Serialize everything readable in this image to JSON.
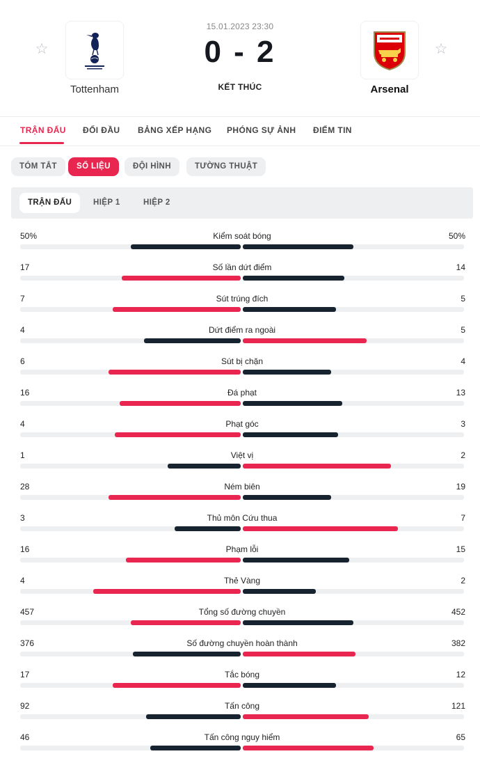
{
  "match": {
    "date": "15.01.2023 23:30",
    "score": "0 - 2",
    "status": "KẾT THÚC",
    "home": {
      "name": "Tottenham"
    },
    "away": {
      "name": "Arsenal"
    }
  },
  "main_tabs": [
    "TRẬN ĐẤU",
    "ĐỐI ĐẦU",
    "BẢNG XẾP HẠNG",
    "PHÓNG SỰ ẢNH",
    "ĐIỂM TIN"
  ],
  "sub_tabs": [
    "TÓM TẮT",
    "SỐ LIỆU",
    "ĐỘI HÌNH",
    "TƯỜNG THUẬT"
  ],
  "period_tabs": [
    "TRẬN ĐẤU",
    "HIỆP 1",
    "HIỆP 2"
  ],
  "colors": {
    "accent": "#e8264f",
    "dark": "#17232f",
    "track": "#eeeff1"
  },
  "stats": [
    {
      "label": "Kiểm soát bóng",
      "home": "50%",
      "away": "50%",
      "home_share": 0.5,
      "away_share": 0.5,
      "home_color": "dark",
      "away_color": "dark"
    },
    {
      "label": "Số lần dứt điểm",
      "home": "17",
      "away": "14",
      "home_share": 0.54,
      "away_share": 0.46,
      "home_color": "accent",
      "away_color": "dark"
    },
    {
      "label": "Sút trúng đích",
      "home": "7",
      "away": "5",
      "home_share": 0.58,
      "away_share": 0.42,
      "home_color": "accent",
      "away_color": "dark"
    },
    {
      "label": "Dứt điểm ra ngoài",
      "home": "4",
      "away": "5",
      "home_share": 0.44,
      "away_share": 0.56,
      "home_color": "dark",
      "away_color": "accent"
    },
    {
      "label": "Sút bị chặn",
      "home": "6",
      "away": "4",
      "home_share": 0.6,
      "away_share": 0.4,
      "home_color": "accent",
      "away_color": "dark"
    },
    {
      "label": "Đá phạt",
      "home": "16",
      "away": "13",
      "home_share": 0.55,
      "away_share": 0.45,
      "home_color": "accent",
      "away_color": "dark"
    },
    {
      "label": "Phạt góc",
      "home": "4",
      "away": "3",
      "home_share": 0.57,
      "away_share": 0.43,
      "home_color": "accent",
      "away_color": "dark"
    },
    {
      "label": "Việt vị",
      "home": "1",
      "away": "2",
      "home_share": 0.33,
      "away_share": 0.67,
      "home_color": "dark",
      "away_color": "accent"
    },
    {
      "label": "Ném biên",
      "home": "28",
      "away": "19",
      "home_share": 0.6,
      "away_share": 0.4,
      "home_color": "accent",
      "away_color": "dark"
    },
    {
      "label": "Thủ môn Cứu thua",
      "home": "3",
      "away": "7",
      "home_share": 0.3,
      "away_share": 0.7,
      "home_color": "dark",
      "away_color": "accent"
    },
    {
      "label": "Phạm lỗi",
      "home": "16",
      "away": "15",
      "home_share": 0.52,
      "away_share": 0.48,
      "home_color": "accent",
      "away_color": "dark"
    },
    {
      "label": "Thẻ Vàng",
      "home": "4",
      "away": "2",
      "home_share": 0.67,
      "away_share": 0.33,
      "home_color": "accent",
      "away_color": "dark"
    },
    {
      "label": "Tổng số đường chuyền",
      "home": "457",
      "away": "452",
      "home_share": 0.5,
      "away_share": 0.5,
      "home_color": "accent",
      "away_color": "dark"
    },
    {
      "label": "Số đường chuyền hoàn thành",
      "home": "376",
      "away": "382",
      "home_share": 0.49,
      "away_share": 0.51,
      "home_color": "dark",
      "away_color": "accent"
    },
    {
      "label": "Tắc bóng",
      "home": "17",
      "away": "12",
      "home_share": 0.58,
      "away_share": 0.42,
      "home_color": "accent",
      "away_color": "dark"
    },
    {
      "label": "Tấn công",
      "home": "92",
      "away": "121",
      "home_share": 0.43,
      "away_share": 0.57,
      "home_color": "dark",
      "away_color": "accent"
    },
    {
      "label": "Tấn công nguy hiểm",
      "home": "46",
      "away": "65",
      "home_share": 0.41,
      "away_share": 0.59,
      "home_color": "dark",
      "away_color": "accent"
    }
  ]
}
